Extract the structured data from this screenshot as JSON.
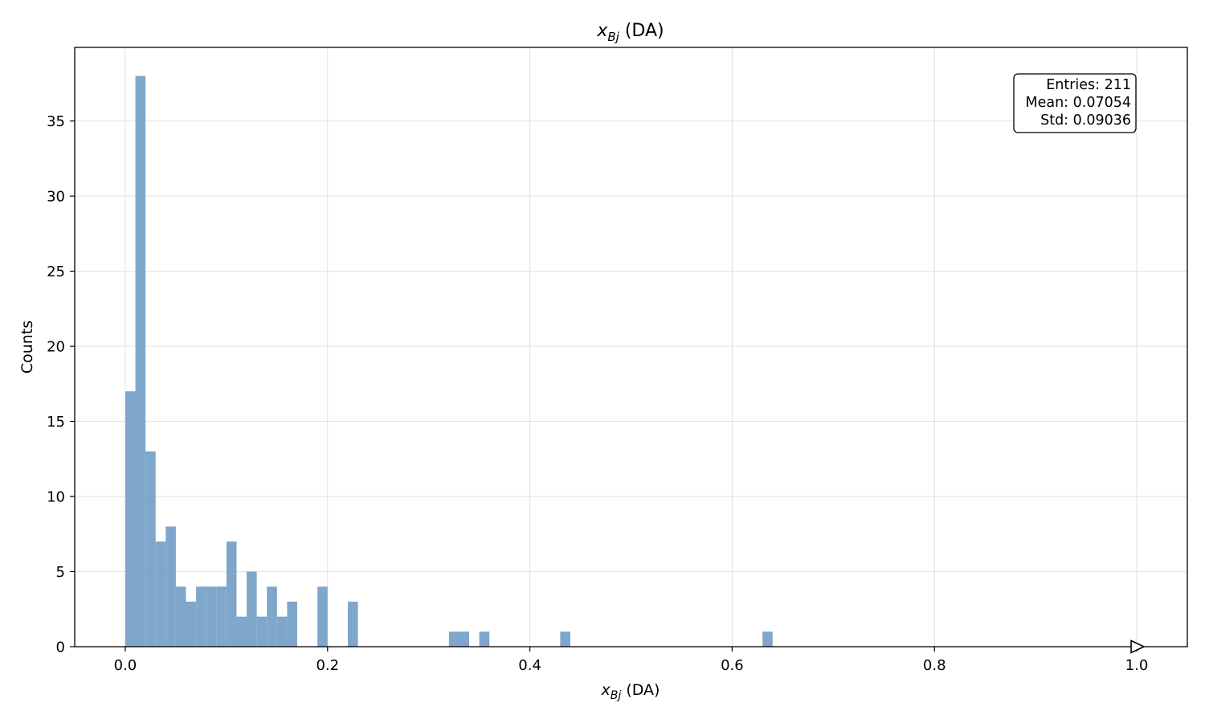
{
  "chart_data": {
    "type": "bar",
    "title": {
      "base": "x",
      "sub": "Bj",
      "rest": " (DA)"
    },
    "xlabel": {
      "base": "x",
      "sub": "Bj",
      "rest": " (DA)"
    },
    "ylabel": "Counts",
    "xlim": [
      -0.05,
      1.05
    ],
    "ylim": [
      0,
      39.9
    ],
    "xticks": [
      0.0,
      0.2,
      0.4,
      0.6,
      0.8,
      1.0
    ],
    "xtick_labels": [
      "0.0",
      "0.2",
      "0.4",
      "0.6",
      "0.8",
      "1.0"
    ],
    "yticks": [
      0,
      5,
      10,
      15,
      20,
      25,
      30,
      35
    ],
    "ytick_labels": [
      "0",
      "5",
      "10",
      "15",
      "20",
      "25",
      "30",
      "35"
    ],
    "grid": true,
    "bar_color": "#7ea7cb",
    "bin_width": 0.01,
    "bins": [
      {
        "x0": 0.0,
        "count": 17
      },
      {
        "x0": 0.01,
        "count": 38
      },
      {
        "x0": 0.02,
        "count": 13
      },
      {
        "x0": 0.03,
        "count": 7
      },
      {
        "x0": 0.04,
        "count": 8
      },
      {
        "x0": 0.05,
        "count": 4
      },
      {
        "x0": 0.06,
        "count": 3
      },
      {
        "x0": 0.07,
        "count": 4
      },
      {
        "x0": 0.08,
        "count": 4
      },
      {
        "x0": 0.09,
        "count": 4
      },
      {
        "x0": 0.1,
        "count": 7
      },
      {
        "x0": 0.11,
        "count": 2
      },
      {
        "x0": 0.12,
        "count": 5
      },
      {
        "x0": 0.13,
        "count": 2
      },
      {
        "x0": 0.14,
        "count": 4
      },
      {
        "x0": 0.15,
        "count": 2
      },
      {
        "x0": 0.16,
        "count": 3
      },
      {
        "x0": 0.19,
        "count": 4
      },
      {
        "x0": 0.22,
        "count": 3
      },
      {
        "x0": 0.32,
        "count": 1
      },
      {
        "x0": 0.33,
        "count": 1
      },
      {
        "x0": 0.35,
        "count": 1
      },
      {
        "x0": 0.43,
        "count": 1
      },
      {
        "x0": 0.63,
        "count": 1
      }
    ],
    "overflow_marker_x": 1.0,
    "stats": {
      "entries": "Entries: 211",
      "mean": "Mean: 0.07054",
      "std": "Std: 0.09036"
    },
    "stats_placement": "top-right"
  }
}
